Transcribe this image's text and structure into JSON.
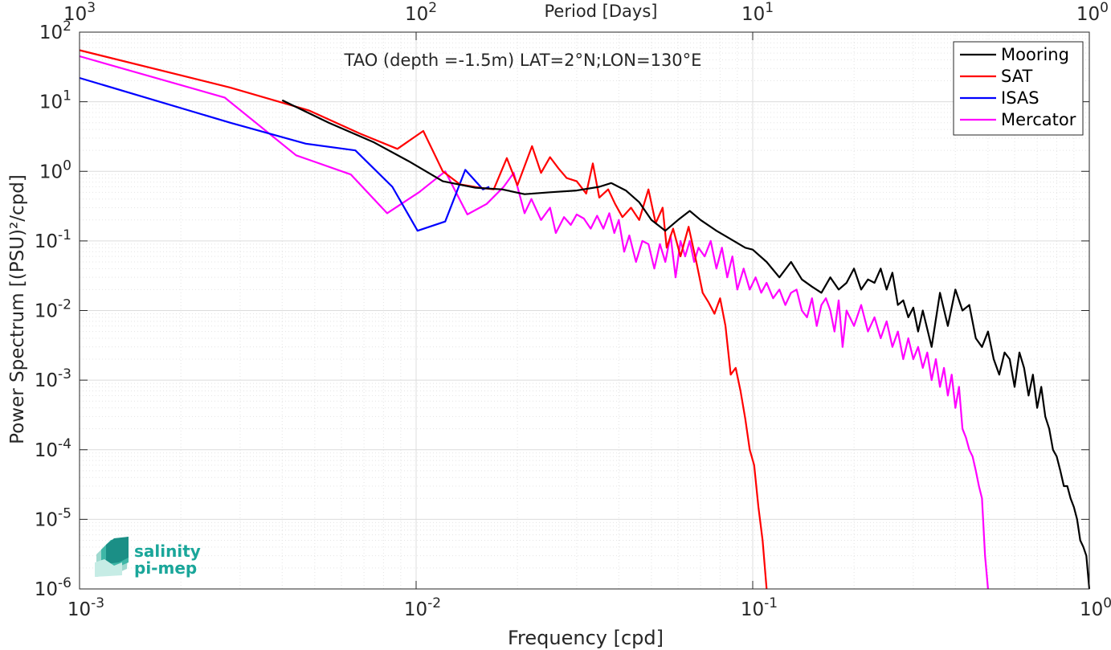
{
  "chart_data": {
    "type": "line",
    "title": "TAO (depth =-1.5m) LAT=2°N;LON=130°E",
    "xlabel": "Frequency [cpd]",
    "ylabel": "Power Spectrum [(PSU)²/cpd]",
    "top_axis_label": "Period [Days]",
    "x_scale": "log",
    "y_scale": "log",
    "xlim": [
      0.001,
      1
    ],
    "ylim": [
      1e-06,
      100
    ],
    "grid": true,
    "legend_position": "top-right",
    "x_ticks": [
      {
        "base": "10",
        "exp": "-3"
      },
      {
        "base": "10",
        "exp": "-2"
      },
      {
        "base": "10",
        "exp": "-1"
      },
      {
        "base": "10",
        "exp": "0"
      }
    ],
    "top_ticks": [
      {
        "base": "10",
        "exp": "3"
      },
      {
        "base": "10",
        "exp": "2"
      },
      {
        "base": "10",
        "exp": "1"
      },
      {
        "base": "10",
        "exp": "0"
      }
    ],
    "y_ticks": [
      {
        "base": "10",
        "exp": "2"
      },
      {
        "base": "10",
        "exp": "1"
      },
      {
        "base": "10",
        "exp": "0"
      },
      {
        "base": "10",
        "exp": "-1"
      },
      {
        "base": "10",
        "exp": "-2"
      },
      {
        "base": "10",
        "exp": "-3"
      },
      {
        "base": "10",
        "exp": "-4"
      },
      {
        "base": "10",
        "exp": "-5"
      },
      {
        "base": "10",
        "exp": "-6"
      }
    ],
    "series": [
      {
        "name": "Mooring",
        "color": "#000000",
        "x": [
          0.004,
          0.0055,
          0.0075,
          0.0095,
          0.012,
          0.015,
          0.018,
          0.021,
          0.025,
          0.03,
          0.035,
          0.038,
          0.042,
          0.046,
          0.05,
          0.055,
          0.06,
          0.065,
          0.07,
          0.078,
          0.085,
          0.095,
          0.1,
          0.11,
          0.12,
          0.13,
          0.14,
          0.15,
          0.16,
          0.17,
          0.18,
          0.19,
          0.2,
          0.21,
          0.22,
          0.23,
          0.24,
          0.25,
          0.26,
          0.27,
          0.28,
          0.29,
          0.3,
          0.31,
          0.32,
          0.34,
          0.36,
          0.38,
          0.4,
          0.42,
          0.44,
          0.46,
          0.48,
          0.5,
          0.52,
          0.54,
          0.56,
          0.58,
          0.6,
          0.62,
          0.64,
          0.66,
          0.68,
          0.7,
          0.72,
          0.74,
          0.76,
          0.78,
          0.8,
          0.82,
          0.84,
          0.86,
          0.88,
          0.9,
          0.92,
          0.94,
          0.96,
          0.98,
          1.0
        ],
        "y": [
          10.5,
          5.0,
          2.6,
          1.4,
          0.72,
          0.58,
          0.55,
          0.47,
          0.5,
          0.53,
          0.6,
          0.68,
          0.53,
          0.36,
          0.2,
          0.14,
          0.2,
          0.27,
          0.2,
          0.14,
          0.11,
          0.08,
          0.075,
          0.05,
          0.03,
          0.05,
          0.028,
          0.022,
          0.018,
          0.03,
          0.02,
          0.025,
          0.04,
          0.02,
          0.028,
          0.025,
          0.04,
          0.02,
          0.035,
          0.012,
          0.014,
          0.008,
          0.011,
          0.005,
          0.01,
          0.003,
          0.018,
          0.006,
          0.02,
          0.01,
          0.012,
          0.004,
          0.003,
          0.005,
          0.002,
          0.0012,
          0.0025,
          0.002,
          0.0008,
          0.0025,
          0.0015,
          0.0006,
          0.0012,
          0.0004,
          0.0008,
          0.0003,
          0.0002,
          0.0001,
          8e-05,
          5e-05,
          3e-05,
          3e-05,
          2e-05,
          1.5e-05,
          1e-05,
          5e-06,
          4e-06,
          3e-06,
          1e-06
        ]
      },
      {
        "name": "SAT",
        "color": "#ff0000",
        "x": [
          0.001,
          0.0028,
          0.0048,
          0.0068,
          0.0088,
          0.0105,
          0.012,
          0.0135,
          0.0155,
          0.017,
          0.0186,
          0.02,
          0.0221,
          0.0235,
          0.025,
          0.0265,
          0.028,
          0.03,
          0.032,
          0.0335,
          0.035,
          0.0372,
          0.039,
          0.041,
          0.0435,
          0.046,
          0.049,
          0.0515,
          0.054,
          0.0555,
          0.058,
          0.061,
          0.0645,
          0.068,
          0.071,
          0.074,
          0.077,
          0.08,
          0.083,
          0.086,
          0.089,
          0.092,
          0.095,
          0.098,
          0.101,
          0.104,
          0.107,
          0.11
        ],
        "y": [
          55,
          16,
          7.5,
          3.5,
          2.1,
          3.8,
          1.0,
          0.65,
          0.58,
          0.55,
          1.55,
          0.63,
          2.3,
          0.95,
          1.6,
          1.1,
          0.8,
          0.72,
          0.48,
          1.3,
          0.42,
          0.55,
          0.34,
          0.22,
          0.3,
          0.2,
          0.55,
          0.18,
          0.3,
          0.08,
          0.15,
          0.06,
          0.16,
          0.05,
          0.018,
          0.013,
          0.009,
          0.015,
          0.006,
          0.0012,
          0.0015,
          0.0007,
          0.00028,
          0.0001,
          6e-05,
          1.5e-05,
          5e-06,
          1e-06
        ]
      },
      {
        "name": "ISAS",
        "color": "#0000ff",
        "x": [
          0.001,
          0.0028,
          0.0047,
          0.0066,
          0.0085,
          0.0101,
          0.0122,
          0.014,
          0.0158,
          0.0165
        ],
        "y": [
          22,
          5.0,
          2.5,
          2.0,
          0.6,
          0.14,
          0.19,
          1.05,
          0.55,
          0.6
        ]
      },
      {
        "name": "Mercator",
        "color": "#ff00ff",
        "x": [
          0.001,
          0.0027,
          0.0044,
          0.0064,
          0.0082,
          0.0102,
          0.0122,
          0.0142,
          0.0162,
          0.0182,
          0.0195,
          0.021,
          0.022,
          0.0235,
          0.025,
          0.026,
          0.0275,
          0.0288,
          0.03,
          0.0315,
          0.033,
          0.0345,
          0.036,
          0.0375,
          0.0388,
          0.04,
          0.0415,
          0.043,
          0.045,
          0.047,
          0.049,
          0.051,
          0.053,
          0.055,
          0.057,
          0.059,
          0.061,
          0.063,
          0.065,
          0.067,
          0.069,
          0.072,
          0.075,
          0.078,
          0.081,
          0.084,
          0.087,
          0.09,
          0.094,
          0.098,
          0.102,
          0.106,
          0.11,
          0.115,
          0.12,
          0.125,
          0.13,
          0.135,
          0.14,
          0.145,
          0.15,
          0.155,
          0.16,
          0.165,
          0.17,
          0.175,
          0.18,
          0.185,
          0.19,
          0.2,
          0.21,
          0.22,
          0.23,
          0.24,
          0.25,
          0.26,
          0.27,
          0.28,
          0.29,
          0.3,
          0.31,
          0.32,
          0.33,
          0.34,
          0.35,
          0.36,
          0.37,
          0.38,
          0.39,
          0.4,
          0.41,
          0.42,
          0.43,
          0.44,
          0.45,
          0.46,
          0.47,
          0.48,
          0.49,
          0.5
        ],
        "y": [
          45,
          11.5,
          1.7,
          0.9,
          0.25,
          0.5,
          1.0,
          0.24,
          0.34,
          0.6,
          0.95,
          0.25,
          0.4,
          0.2,
          0.3,
          0.13,
          0.22,
          0.17,
          0.24,
          0.21,
          0.15,
          0.23,
          0.15,
          0.25,
          0.13,
          0.2,
          0.07,
          0.12,
          0.05,
          0.1,
          0.09,
          0.04,
          0.09,
          0.05,
          0.12,
          0.03,
          0.1,
          0.06,
          0.1,
          0.05,
          0.08,
          0.06,
          0.1,
          0.04,
          0.08,
          0.03,
          0.06,
          0.02,
          0.04,
          0.02,
          0.03,
          0.018,
          0.025,
          0.015,
          0.02,
          0.012,
          0.018,
          0.02,
          0.01,
          0.008,
          0.015,
          0.006,
          0.012,
          0.015,
          0.01,
          0.005,
          0.014,
          0.003,
          0.01,
          0.006,
          0.012,
          0.005,
          0.008,
          0.004,
          0.007,
          0.003,
          0.005,
          0.002,
          0.004,
          0.002,
          0.003,
          0.0015,
          0.0025,
          0.001,
          0.002,
          0.0008,
          0.0015,
          0.0006,
          0.0012,
          0.0004,
          0.0008,
          0.0002,
          0.00015,
          0.0001,
          8e-05,
          5e-05,
          3e-05,
          2e-05,
          3e-06,
          1e-06
        ]
      }
    ]
  },
  "logo": {
    "line1": "salinity",
    "line2": "pi-mep",
    "color": "#1aa69a"
  }
}
